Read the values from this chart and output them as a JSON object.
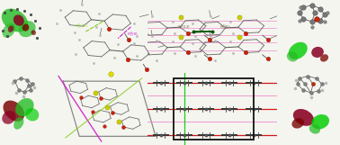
{
  "background_color": "#f5f5f0",
  "figsize": [
    3.78,
    1.61
  ],
  "dpi": 100,
  "layout": {
    "tl_orb": [
      0.0,
      0.5,
      0.145,
      0.5
    ],
    "tl_mol": [
      0.145,
      0.5,
      0.34,
      0.5
    ],
    "tr_mol": [
      0.435,
      0.5,
      0.38,
      0.5
    ],
    "tr_orb": [
      0.835,
      0.5,
      0.165,
      0.5
    ],
    "bl_orb": [
      0.0,
      0.0,
      0.145,
      0.5
    ],
    "bl_mol": [
      0.145,
      0.0,
      0.34,
      0.5
    ],
    "br_mol": [
      0.435,
      0.0,
      0.38,
      0.5
    ],
    "br_orb": [
      0.835,
      0.0,
      0.165,
      0.5
    ]
  },
  "colors": {
    "green": "#22bb22",
    "bright_green": "#00cc00",
    "dark_green": "#005500",
    "red": "#cc0000",
    "dark_red": "#770000",
    "maroon": "#880022",
    "gray": "#888888",
    "dark_gray": "#444444",
    "light_gray": "#bbbbbb",
    "atom_gray": "#808080",
    "atom_dark": "#505050",
    "black": "#111111",
    "orange_red": "#cc3300",
    "orange": "#dd6600",
    "red_atom": "#cc2200",
    "yellow": "#dddd00",
    "yellow_s": "#cccc00",
    "pink": "#ee88cc",
    "magenta": "#cc22cc",
    "lime": "#88cc22",
    "blue_gray": "#8899aa",
    "cell_gray": "#999999",
    "white": "#ffffff",
    "bg": "#f5f5f0"
  }
}
